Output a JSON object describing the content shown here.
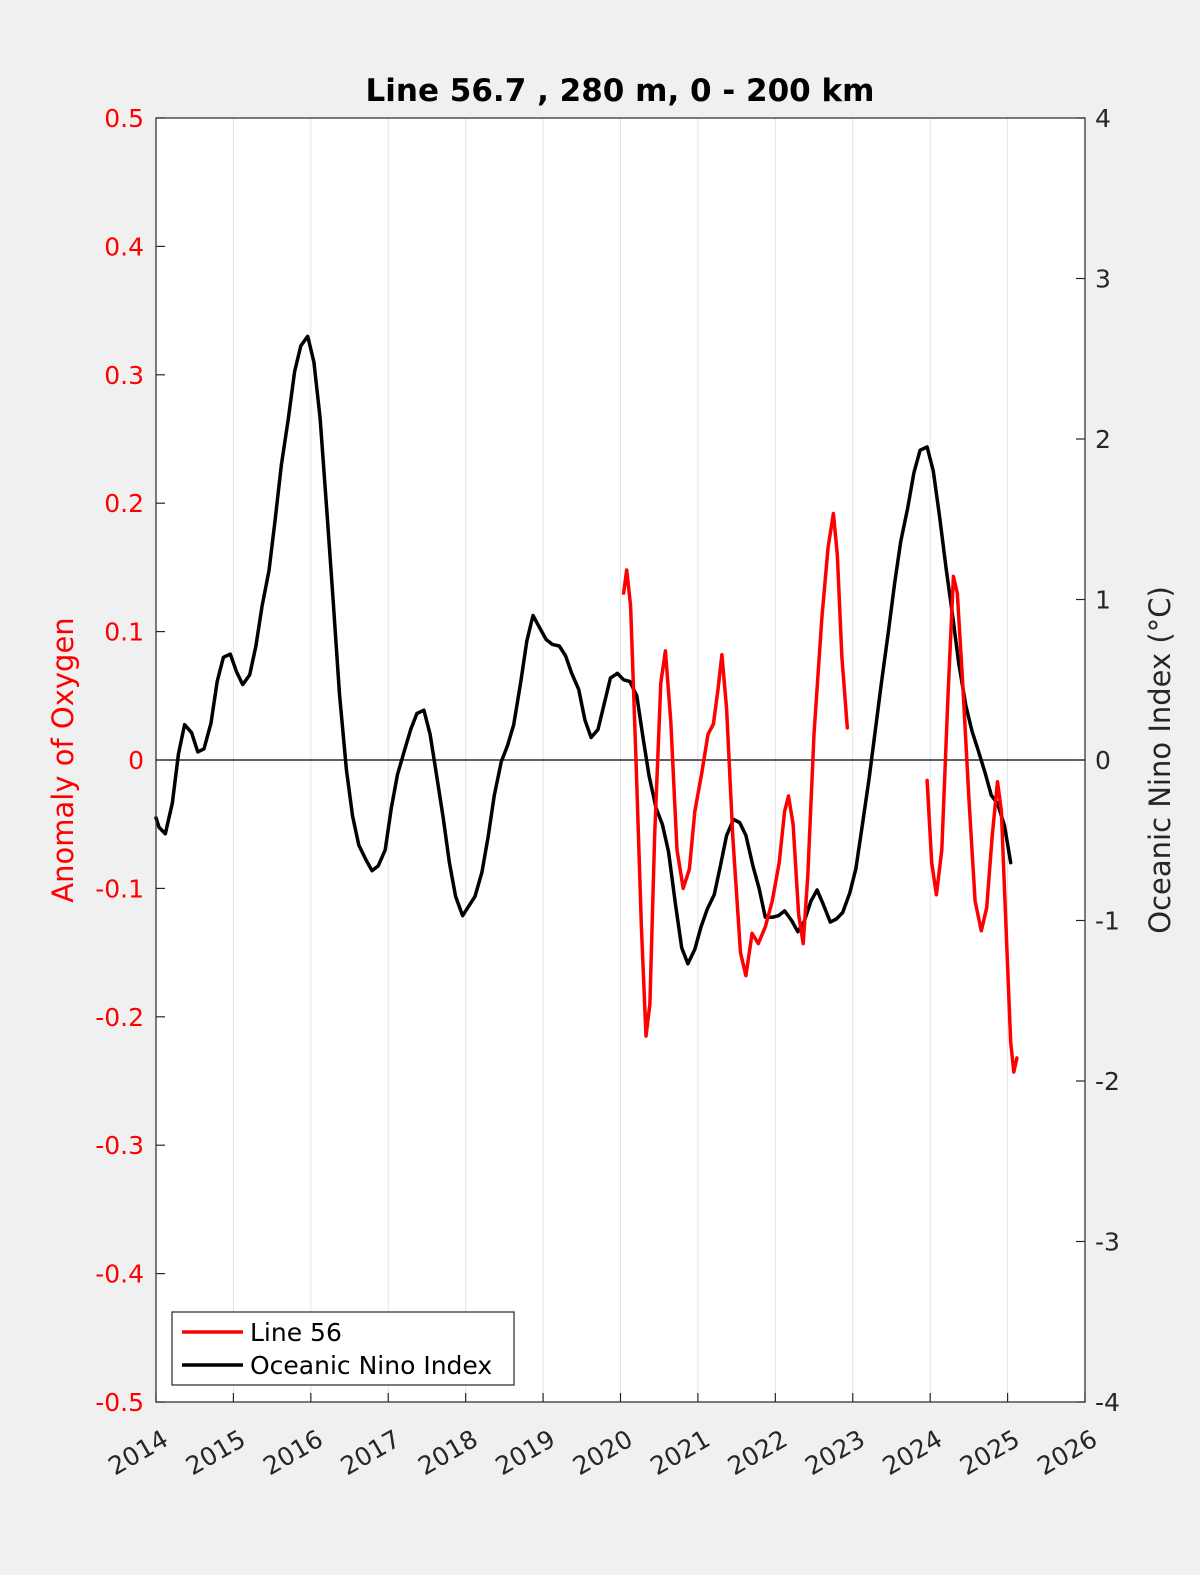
{
  "chart_data": {
    "type": "line",
    "title": "Line 56.7 , 280 m, 0 - 200 km",
    "ylabel_left": "Anomaly of Oxygen",
    "ylabel_right": "Oceanic Nino Index (°C)",
    "xlim": [
      2014,
      2026
    ],
    "ylim_left": [
      -0.5,
      0.5
    ],
    "ylim_right": [
      -4,
      4
    ],
    "x_ticks": [
      "2014",
      "2015",
      "2016",
      "2017",
      "2018",
      "2019",
      "2020",
      "2021",
      "2022",
      "2023",
      "2024",
      "2025",
      "2026"
    ],
    "y_left_ticks": [
      "0.5",
      "0.4",
      "0.3",
      "0.2",
      "0.1",
      "0",
      "-0.1",
      "-0.2",
      "-0.3",
      "-0.4",
      "-0.5"
    ],
    "y_right_ticks": [
      "4",
      "3",
      "2",
      "1",
      "0",
      "-1",
      "-2",
      "-3",
      "-4"
    ],
    "grid": "vertical",
    "zero_line": true,
    "legend_position": "bottom-left",
    "colors": {
      "line56": "#ff0000",
      "oni": "#000000",
      "axis_left": "#ff0000",
      "axis_right": "#262626"
    },
    "series": [
      {
        "name": "Line 56",
        "axis": "left",
        "segments": [
          [
            [
              2020.04,
              0.13
            ],
            [
              2020.08,
              0.148
            ],
            [
              2020.13,
              0.12
            ],
            [
              2020.2,
              0.0
            ],
            [
              2020.27,
              -0.13
            ],
            [
              2020.33,
              -0.215
            ],
            [
              2020.38,
              -0.19
            ],
            [
              2020.44,
              -0.06
            ],
            [
              2020.52,
              0.06
            ],
            [
              2020.58,
              0.085
            ],
            [
              2020.65,
              0.03
            ],
            [
              2020.73,
              -0.07
            ],
            [
              2020.81,
              -0.1
            ],
            [
              2020.89,
              -0.085
            ],
            [
              2020.96,
              -0.04
            ],
            [
              2021.05,
              -0.01
            ],
            [
              2021.13,
              0.02
            ],
            [
              2021.2,
              0.028
            ],
            [
              2021.26,
              0.055
            ],
            [
              2021.31,
              0.082
            ],
            [
              2021.37,
              0.04
            ],
            [
              2021.45,
              -0.06
            ],
            [
              2021.55,
              -0.15
            ],
            [
              2021.62,
              -0.168
            ],
            [
              2021.7,
              -0.135
            ],
            [
              2021.78,
              -0.143
            ],
            [
              2021.87,
              -0.13
            ],
            [
              2021.96,
              -0.11
            ],
            [
              2022.05,
              -0.08
            ],
            [
              2022.12,
              -0.04
            ],
            [
              2022.17,
              -0.028
            ],
            [
              2022.23,
              -0.05
            ],
            [
              2022.3,
              -0.12
            ],
            [
              2022.36,
              -0.143
            ],
            [
              2022.42,
              -0.09
            ],
            [
              2022.5,
              0.02
            ],
            [
              2022.6,
              0.11
            ],
            [
              2022.68,
              0.165
            ],
            [
              2022.75,
              0.192
            ],
            [
              2022.8,
              0.16
            ],
            [
              2022.86,
              0.08
            ],
            [
              2022.93,
              0.025
            ]
          ],
          [
            [
              2023.96,
              -0.016
            ],
            [
              2024.02,
              -0.08
            ],
            [
              2024.08,
              -0.105
            ],
            [
              2024.15,
              -0.07
            ],
            [
              2024.23,
              0.05
            ],
            [
              2024.3,
              0.143
            ],
            [
              2024.35,
              0.13
            ],
            [
              2024.42,
              0.06
            ],
            [
              2024.5,
              -0.03
            ],
            [
              2024.58,
              -0.11
            ],
            [
              2024.66,
              -0.133
            ],
            [
              2024.73,
              -0.115
            ],
            [
              2024.8,
              -0.06
            ],
            [
              2024.87,
              -0.017
            ],
            [
              2024.92,
              -0.04
            ],
            [
              2024.98,
              -0.13
            ],
            [
              2025.04,
              -0.22
            ],
            [
              2025.08,
              -0.243
            ],
            [
              2025.12,
              -0.232
            ]
          ]
        ]
      },
      {
        "name": "Oceanic Nino Index",
        "axis": "right",
        "points": [
          [
            2014.0,
            -0.36
          ],
          [
            2014.04,
            -0.42
          ],
          [
            2014.12,
            -0.46
          ],
          [
            2014.21,
            -0.27
          ],
          [
            2014.29,
            0.04
          ],
          [
            2014.37,
            0.22
          ],
          [
            2014.46,
            0.17
          ],
          [
            2014.54,
            0.05
          ],
          [
            2014.62,
            0.07
          ],
          [
            2014.71,
            0.23
          ],
          [
            2014.79,
            0.49
          ],
          [
            2014.87,
            0.64
          ],
          [
            2014.96,
            0.66
          ],
          [
            2015.04,
            0.55
          ],
          [
            2015.12,
            0.47
          ],
          [
            2015.21,
            0.53
          ],
          [
            2015.29,
            0.71
          ],
          [
            2015.37,
            0.96
          ],
          [
            2015.46,
            1.18
          ],
          [
            2015.54,
            1.5
          ],
          [
            2015.62,
            1.84
          ],
          [
            2015.71,
            2.13
          ],
          [
            2015.79,
            2.42
          ],
          [
            2015.87,
            2.58
          ],
          [
            2015.96,
            2.64
          ],
          [
            2016.04,
            2.48
          ],
          [
            2016.12,
            2.13
          ],
          [
            2016.21,
            1.53
          ],
          [
            2016.29,
            0.98
          ],
          [
            2016.37,
            0.41
          ],
          [
            2016.46,
            -0.06
          ],
          [
            2016.54,
            -0.35
          ],
          [
            2016.62,
            -0.53
          ],
          [
            2016.71,
            -0.62
          ],
          [
            2016.79,
            -0.69
          ],
          [
            2016.87,
            -0.66
          ],
          [
            2016.96,
            -0.56
          ],
          [
            2017.04,
            -0.3
          ],
          [
            2017.12,
            -0.09
          ],
          [
            2017.21,
            0.06
          ],
          [
            2017.29,
            0.19
          ],
          [
            2017.37,
            0.29
          ],
          [
            2017.46,
            0.31
          ],
          [
            2017.54,
            0.16
          ],
          [
            2017.62,
            -0.08
          ],
          [
            2017.71,
            -0.36
          ],
          [
            2017.79,
            -0.64
          ],
          [
            2017.87,
            -0.85
          ],
          [
            2017.96,
            -0.97
          ],
          [
            2018.04,
            -0.91
          ],
          [
            2018.12,
            -0.85
          ],
          [
            2018.21,
            -0.7
          ],
          [
            2018.29,
            -0.48
          ],
          [
            2018.37,
            -0.22
          ],
          [
            2018.46,
            -0.01
          ],
          [
            2018.54,
            0.09
          ],
          [
            2018.62,
            0.22
          ],
          [
            2018.71,
            0.48
          ],
          [
            2018.79,
            0.74
          ],
          [
            2018.87,
            0.9
          ],
          [
            2018.96,
            0.82
          ],
          [
            2019.04,
            0.75
          ],
          [
            2019.12,
            0.72
          ],
          [
            2019.21,
            0.71
          ],
          [
            2019.29,
            0.65
          ],
          [
            2019.37,
            0.54
          ],
          [
            2019.46,
            0.44
          ],
          [
            2019.54,
            0.25
          ],
          [
            2019.62,
            0.14
          ],
          [
            2019.71,
            0.19
          ],
          [
            2019.79,
            0.35
          ],
          [
            2019.87,
            0.51
          ],
          [
            2019.96,
            0.54
          ],
          [
            2020.04,
            0.5
          ],
          [
            2020.12,
            0.49
          ],
          [
            2020.21,
            0.4
          ],
          [
            2020.29,
            0.14
          ],
          [
            2020.37,
            -0.1
          ],
          [
            2020.46,
            -0.3
          ],
          [
            2020.54,
            -0.4
          ],
          [
            2020.62,
            -0.57
          ],
          [
            2020.71,
            -0.9
          ],
          [
            2020.79,
            -1.17
          ],
          [
            2020.87,
            -1.27
          ],
          [
            2020.96,
            -1.18
          ],
          [
            2021.04,
            -1.04
          ],
          [
            2021.12,
            -0.93
          ],
          [
            2021.21,
            -0.84
          ],
          [
            2021.29,
            -0.66
          ],
          [
            2021.37,
            -0.47
          ],
          [
            2021.46,
            -0.37
          ],
          [
            2021.54,
            -0.39
          ],
          [
            2021.62,
            -0.47
          ],
          [
            2021.71,
            -0.66
          ],
          [
            2021.79,
            -0.8
          ],
          [
            2021.87,
            -0.98
          ],
          [
            2021.96,
            -0.98
          ],
          [
            2022.04,
            -0.97
          ],
          [
            2022.12,
            -0.94
          ],
          [
            2022.21,
            -1.0
          ],
          [
            2022.29,
            -1.07
          ],
          [
            2022.37,
            -1.01
          ],
          [
            2022.46,
            -0.88
          ],
          [
            2022.54,
            -0.81
          ],
          [
            2022.62,
            -0.9
          ],
          [
            2022.71,
            -1.01
          ],
          [
            2022.79,
            -0.99
          ],
          [
            2022.87,
            -0.95
          ],
          [
            2022.96,
            -0.83
          ],
          [
            2023.04,
            -0.68
          ],
          [
            2023.12,
            -0.42
          ],
          [
            2023.21,
            -0.12
          ],
          [
            2023.29,
            0.18
          ],
          [
            2023.37,
            0.48
          ],
          [
            2023.46,
            0.8
          ],
          [
            2023.54,
            1.1
          ],
          [
            2023.62,
            1.36
          ],
          [
            2023.71,
            1.57
          ],
          [
            2023.79,
            1.79
          ],
          [
            2023.87,
            1.93
          ],
          [
            2023.96,
            1.95
          ],
          [
            2024.04,
            1.8
          ],
          [
            2024.12,
            1.52
          ],
          [
            2024.21,
            1.18
          ],
          [
            2024.29,
            0.9
          ],
          [
            2024.37,
            0.6
          ],
          [
            2024.46,
            0.34
          ],
          [
            2024.54,
            0.18
          ],
          [
            2024.62,
            0.06
          ],
          [
            2024.71,
            -0.08
          ],
          [
            2024.79,
            -0.22
          ],
          [
            2024.87,
            -0.27
          ],
          [
            2024.96,
            -0.41
          ],
          [
            2025.04,
            -0.64
          ]
        ]
      }
    ]
  }
}
